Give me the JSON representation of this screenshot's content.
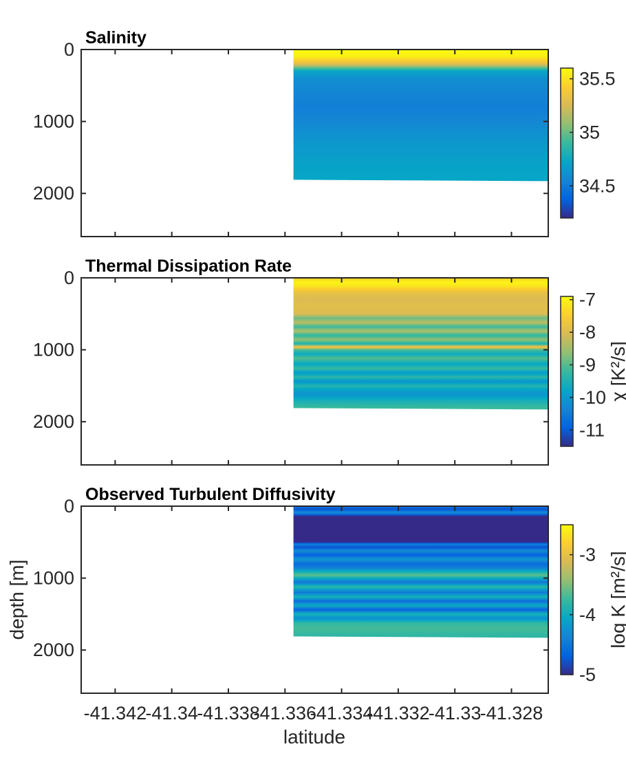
{
  "chart_data": {
    "type": "heatmap",
    "xlabel": "latitude",
    "ylabel": "depth [m]",
    "xlim": [
      -41.3432,
      -41.3267
    ],
    "ylim": [
      0,
      2600
    ],
    "y_reversed": true,
    "x_ticks": [
      -41.342,
      -41.34,
      -41.338,
      -41.336,
      -41.334,
      -41.332,
      -41.33,
      -41.328
    ],
    "x_tick_labels": [
      "-41.342",
      "-41.34",
      "-41.338",
      "-41.336",
      "-41.334",
      "-41.332",
      "-41.33",
      "-41.328"
    ],
    "y_ticks": [
      0,
      1000,
      2000
    ],
    "y_tick_labels": [
      "0",
      "1000",
      "2000"
    ],
    "data_extent": {
      "x": [
        -41.3357,
        -41.3267
      ],
      "depth_max_left": 1810,
      "depth_max_right": 1830
    },
    "colormap": "parula",
    "colormap_stops": [
      "#352a87",
      "#0363e1",
      "#1485d4",
      "#06a7c6",
      "#38b99e",
      "#92bf73",
      "#d9ba56",
      "#fcce2e",
      "#f9fb0e"
    ],
    "panels": [
      {
        "title": "Salinity",
        "clim": [
          34.2,
          35.6
        ],
        "cbar_ticks": [
          34.5,
          35,
          35.5
        ],
        "cbar_tick_labels": [
          "34.5",
          "35",
          "35.5"
        ],
        "cbar_label": "",
        "profile": {
          "depth": [
            0,
            100,
            200,
            250,
            300,
            400,
            600,
            800,
            1000,
            1200,
            1400,
            1600,
            1800
          ],
          "value": [
            35.6,
            35.55,
            35.3,
            35.0,
            34.72,
            34.6,
            34.55,
            34.52,
            34.56,
            34.62,
            34.66,
            34.7,
            34.72
          ]
        }
      },
      {
        "title": "Thermal Dissipation Rate",
        "clim": [
          -11.5,
          -6.9
        ],
        "cbar_ticks": [
          -11,
          -10,
          -9,
          -8,
          -7
        ],
        "cbar_tick_labels": [
          "-11",
          "-10",
          "-9",
          "-8",
          "-7"
        ],
        "cbar_label": "χ [K²/s]",
        "profile": {
          "depth": [
            0,
            60,
            120,
            200,
            300,
            400,
            500,
            560,
            620,
            680,
            740,
            800,
            860,
            920,
            960,
            1000,
            1060,
            1120,
            1200,
            1260,
            1320,
            1380,
            1440,
            1500,
            1560,
            1620,
            1700,
            1800
          ],
          "value": [
            -7.5,
            -7.0,
            -7.2,
            -7.8,
            -8.0,
            -7.9,
            -8.0,
            -8.9,
            -8.3,
            -9.2,
            -8.4,
            -9.3,
            -8.6,
            -9.5,
            -7.6,
            -9.1,
            -9.7,
            -9.0,
            -9.8,
            -9.2,
            -10.0,
            -9.3,
            -10.1,
            -9.4,
            -9.9,
            -10.1,
            -9.6,
            -9.2
          ]
        }
      },
      {
        "title": "Observed Turbulent Diffusivity",
        "clim": [
          -5.0,
          -2.5
        ],
        "cbar_ticks": [
          -5,
          -4,
          -3
        ],
        "cbar_tick_labels": [
          "-5",
          "-4",
          "-3"
        ],
        "cbar_label": "log K [m²/s]",
        "profile": {
          "depth": [
            0,
            40,
            90,
            140,
            200,
            500,
            530,
            570,
            620,
            680,
            740,
            800,
            860,
            920,
            960,
            1000,
            1060,
            1120,
            1200,
            1260,
            1320,
            1380,
            1440,
            1500,
            1560,
            1620,
            1700,
            1800
          ],
          "value": [
            -4.4,
            -4.8,
            -4.3,
            -5.0,
            -5.0,
            -5.0,
            -4.4,
            -4.8,
            -4.3,
            -4.7,
            -4.2,
            -4.6,
            -4.4,
            -3.9,
            -3.6,
            -4.0,
            -4.5,
            -3.8,
            -4.5,
            -3.9,
            -4.6,
            -4.0,
            -4.7,
            -3.9,
            -4.3,
            -3.8,
            -3.7,
            -3.8
          ]
        }
      }
    ]
  }
}
